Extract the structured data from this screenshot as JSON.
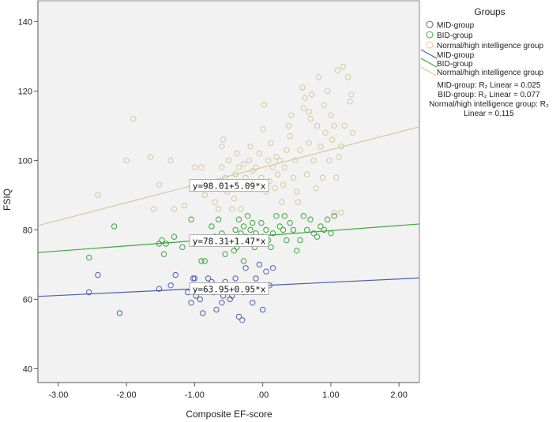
{
  "chart_data": {
    "type": "scatter",
    "xlabel": "Composite EF-score",
    "ylabel": "FSIQ",
    "xlim": [
      -3.3,
      2.3
    ],
    "ylim": [
      36,
      146
    ],
    "x_ticks": [
      -3,
      -2,
      -1,
      0,
      1,
      2
    ],
    "x_tick_labels": [
      "-3.00",
      "-2.00",
      "-1.00",
      ".00",
      "1.00",
      "2.00"
    ],
    "y_ticks": [
      40,
      60,
      80,
      100,
      120,
      140
    ],
    "y_tick_labels": [
      "40",
      "60",
      "80",
      "100",
      "120",
      "140"
    ],
    "grid": false,
    "legend": {
      "title": "Groups",
      "position": "right",
      "marker_entries": [
        "MID-group",
        "BID-group",
        "Normal/high intelligence group"
      ],
      "line_entries": [
        "MID-group",
        "BID-group",
        "Normal/high intelligence group"
      ],
      "r2_lines": [
        "MID-group: R₂ Linear = 0.025",
        "BID-group: R₂ Linear = 0.077",
        "Normal/high intelligence group: R₂",
        "Linear = 0.115"
      ]
    },
    "colors": {
      "MID": "#4a5fb4",
      "BID": "#3aa93a",
      "NH": "#d2cb9c",
      "plot_bg": "#f2f2f2"
    },
    "series": [
      {
        "name": "MID-group",
        "color": "#4a5fb4",
        "fit": {
          "intercept": 63.95,
          "slope": 0.95,
          "label": "y=63.95+0.95*x",
          "label_x": -1.05
        },
        "points": [
          [
            -2.55,
            62
          ],
          [
            -2.42,
            67
          ],
          [
            -2.1,
            56
          ],
          [
            -1.52,
            63
          ],
          [
            -1.35,
            64
          ],
          [
            -1.28,
            67
          ],
          [
            -1.1,
            62
          ],
          [
            -1.05,
            59
          ],
          [
            -1.0,
            66
          ],
          [
            -0.98,
            61
          ],
          [
            -0.95,
            64
          ],
          [
            -0.92,
            60
          ],
          [
            -0.88,
            56
          ],
          [
            -0.85,
            63
          ],
          [
            -0.8,
            66
          ],
          [
            -0.75,
            65
          ],
          [
            -0.72,
            62
          ],
          [
            -0.68,
            57
          ],
          [
            -0.6,
            59
          ],
          [
            -0.58,
            61
          ],
          [
            -0.55,
            65
          ],
          [
            -0.52,
            63
          ],
          [
            -0.48,
            60
          ],
          [
            -0.45,
            61
          ],
          [
            -0.4,
            66
          ],
          [
            -0.35,
            55
          ],
          [
            -0.3,
            54
          ],
          [
            -0.28,
            62
          ],
          [
            -0.25,
            69
          ],
          [
            -0.2,
            63
          ],
          [
            -0.15,
            59
          ],
          [
            -0.1,
            66
          ],
          [
            -0.05,
            70
          ],
          [
            0.0,
            57
          ],
          [
            0.05,
            68
          ],
          [
            0.1,
            64
          ],
          [
            0.15,
            69
          ],
          [
            -1.02,
            66
          ]
        ]
      },
      {
        "name": "BID-group",
        "color": "#3aa93a",
        "fit": {
          "intercept": 78.31,
          "slope": 1.47,
          "label": "y=78.31+1.47*x",
          "label_x": -1.05
        },
        "points": [
          [
            -2.55,
            72
          ],
          [
            -2.18,
            81
          ],
          [
            -1.52,
            76
          ],
          [
            -1.48,
            77
          ],
          [
            -1.45,
            73
          ],
          [
            -1.42,
            76
          ],
          [
            -1.3,
            78
          ],
          [
            -1.18,
            75
          ],
          [
            -1.05,
            83
          ],
          [
            -0.95,
            77
          ],
          [
            -0.9,
            71
          ],
          [
            -0.85,
            71
          ],
          [
            -0.8,
            76
          ],
          [
            -0.75,
            81
          ],
          [
            -0.7,
            78
          ],
          [
            -0.65,
            83
          ],
          [
            -0.6,
            79
          ],
          [
            -0.55,
            73
          ],
          [
            -0.5,
            76
          ],
          [
            -0.45,
            77
          ],
          [
            -0.42,
            74
          ],
          [
            -0.4,
            80
          ],
          [
            -0.38,
            75
          ],
          [
            -0.35,
            83
          ],
          [
            -0.32,
            79
          ],
          [
            -0.3,
            76
          ],
          [
            -0.28,
            81
          ],
          [
            -0.25,
            78
          ],
          [
            -0.22,
            84
          ],
          [
            -0.2,
            77
          ],
          [
            -0.18,
            80
          ],
          [
            -0.15,
            82
          ],
          [
            -0.12,
            75
          ],
          [
            -0.1,
            79
          ],
          [
            -0.05,
            76
          ],
          [
            -0.02,
            82
          ],
          [
            0.0,
            78
          ],
          [
            0.05,
            80
          ],
          [
            0.08,
            77
          ],
          [
            0.12,
            75
          ],
          [
            0.15,
            79
          ],
          [
            0.2,
            84
          ],
          [
            0.25,
            81
          ],
          [
            0.3,
            80
          ],
          [
            0.35,
            77
          ],
          [
            0.4,
            82
          ],
          [
            0.45,
            80
          ],
          [
            0.5,
            74
          ],
          [
            0.55,
            77
          ],
          [
            0.6,
            84
          ],
          [
            0.65,
            80
          ],
          [
            0.7,
            83
          ],
          [
            0.75,
            79
          ],
          [
            0.8,
            78
          ],
          [
            0.85,
            81
          ],
          [
            0.9,
            80
          ],
          [
            0.95,
            83
          ],
          [
            1.0,
            79
          ],
          [
            1.05,
            84
          ],
          [
            -0.28,
            71
          ],
          [
            0.32,
            84
          ]
        ]
      },
      {
        "name": "Normal/high intelligence group",
        "color": "#d2cb9c",
        "fit": {
          "intercept": 98.01,
          "slope": 5.09,
          "label": "y=98.01+5.09*x",
          "label_x": -1.05
        },
        "points": [
          [
            -2.42,
            90
          ],
          [
            -2.0,
            100
          ],
          [
            -1.9,
            112
          ],
          [
            -1.65,
            101
          ],
          [
            -1.6,
            86
          ],
          [
            -1.52,
            93
          ],
          [
            -1.35,
            100
          ],
          [
            -1.3,
            86
          ],
          [
            -1.15,
            87
          ],
          [
            -1.0,
            98
          ],
          [
            -0.9,
            98
          ],
          [
            -0.85,
            90
          ],
          [
            -0.7,
            88
          ],
          [
            -0.65,
            86
          ],
          [
            -0.62,
            93
          ],
          [
            -0.6,
            98
          ],
          [
            -0.6,
            104
          ],
          [
            -0.58,
            106
          ],
          [
            -0.55,
            95
          ],
          [
            -0.52,
            91
          ],
          [
            -0.5,
            100
          ],
          [
            -0.45,
            86
          ],
          [
            -0.42,
            89
          ],
          [
            -0.4,
            96
          ],
          [
            -0.38,
            102
          ],
          [
            -0.35,
            98
          ],
          [
            -0.32,
            86
          ],
          [
            -0.3,
            93
          ],
          [
            -0.28,
            99
          ],
          [
            -0.25,
            95
          ],
          [
            -0.22,
            92
          ],
          [
            -0.2,
            100
          ],
          [
            -0.18,
            104
          ],
          [
            -0.15,
            97
          ],
          [
            -0.12,
            93
          ],
          [
            -0.1,
            98
          ],
          [
            -0.05,
            102
          ],
          [
            -0.02,
            95
          ],
          [
            0.0,
            109
          ],
          [
            0.02,
            116
          ],
          [
            0.05,
            91
          ],
          [
            0.08,
            100
          ],
          [
            0.1,
            94
          ],
          [
            0.12,
            105
          ],
          [
            0.15,
            98
          ],
          [
            0.18,
            92
          ],
          [
            0.2,
            101
          ],
          [
            0.22,
            96
          ],
          [
            0.25,
            100
          ],
          [
            0.28,
            88
          ],
          [
            0.3,
            93
          ],
          [
            0.32,
            98
          ],
          [
            0.35,
            103
          ],
          [
            0.38,
            110
          ],
          [
            0.4,
            107
          ],
          [
            0.42,
            113
          ],
          [
            0.45,
            95
          ],
          [
            0.48,
            100
          ],
          [
            0.5,
            91
          ],
          [
            0.52,
            88
          ],
          [
            0.55,
            103
          ],
          [
            0.58,
            121
          ],
          [
            0.6,
            115
          ],
          [
            0.62,
            118
          ],
          [
            0.65,
            96
          ],
          [
            0.68,
            105
          ],
          [
            0.7,
            112
          ],
          [
            0.72,
            119
          ],
          [
            0.75,
            100
          ],
          [
            0.78,
            92
          ],
          [
            0.8,
            110
          ],
          [
            0.82,
            124
          ],
          [
            0.85,
            104
          ],
          [
            0.88,
            95
          ],
          [
            0.9,
            116
          ],
          [
            0.92,
            108
          ],
          [
            0.95,
            120
          ],
          [
            0.98,
            100
          ],
          [
            1.0,
            113
          ],
          [
            1.02,
            106
          ],
          [
            1.05,
            110
          ],
          [
            1.08,
            95
          ],
          [
            1.1,
            126
          ],
          [
            1.12,
            101
          ],
          [
            1.15,
            104
          ],
          [
            1.18,
            127
          ],
          [
            1.2,
            110
          ],
          [
            1.25,
            124
          ],
          [
            1.28,
            117
          ],
          [
            1.3,
            119
          ],
          [
            1.32,
            108
          ],
          [
            1.05,
            85
          ],
          [
            1.15,
            85
          ],
          [
            0.68,
            114
          ]
        ]
      }
    ]
  }
}
